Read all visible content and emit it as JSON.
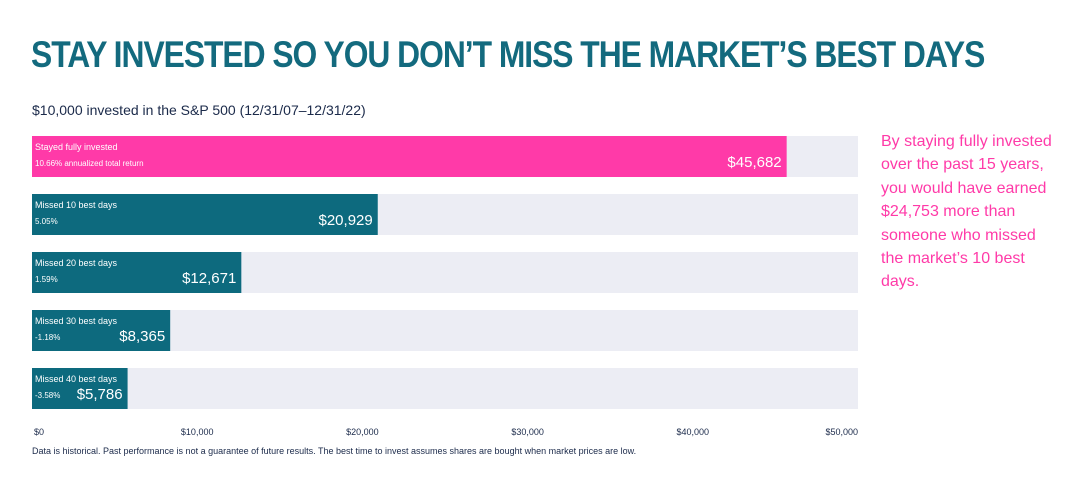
{
  "header": {
    "title": "STAY INVESTED SO YOU DON’T MISS THE MARKET’S BEST DAYS",
    "subtitle": "$10,000 invested in the S&P 500 (12/31/07–12/31/22)"
  },
  "callout": "By staying fully invested over the past 15 years, you would have earned $24,753 more than someone who missed the market’s 10 best days.",
  "footnote": "Data is historical. Past performance is not a guarantee of future results. The best time to invest assumes shares are bought when market prices are low.",
  "colors": {
    "highlight": "#ff3aa8",
    "bar": "#0d6a7e",
    "track": "#ecedf4",
    "axis_text": "#1b2a4a",
    "title": "#136a7e"
  },
  "chart_data": {
    "type": "bar",
    "orientation": "horizontal",
    "title": "$10,000 invested in the S&P 500 (12/31/07–12/31/22)",
    "xlabel": "",
    "ylabel": "",
    "xlim": [
      0,
      50000
    ],
    "grid": false,
    "x_ticks": [
      0,
      10000,
      20000,
      30000,
      40000,
      50000
    ],
    "x_tick_labels": [
      "$0",
      "$10,000",
      "$20,000",
      "$30,000",
      "$40,000",
      "$50,000"
    ],
    "categories": [
      "Stayed fully invested",
      "Missed 10 best days",
      "Missed 20 best days",
      "Missed 30 best days",
      "Missed 40 best days"
    ],
    "sublabels": [
      "10.66% annualized total return",
      "5.05%",
      "1.59%",
      "-1.18%",
      "-3.58%"
    ],
    "values": [
      45682,
      20929,
      12671,
      8365,
      5786
    ],
    "value_labels": [
      "$45,682",
      "$20,929",
      "$12,671",
      "$8,365",
      "$5,786"
    ],
    "highlight_index": 0
  }
}
